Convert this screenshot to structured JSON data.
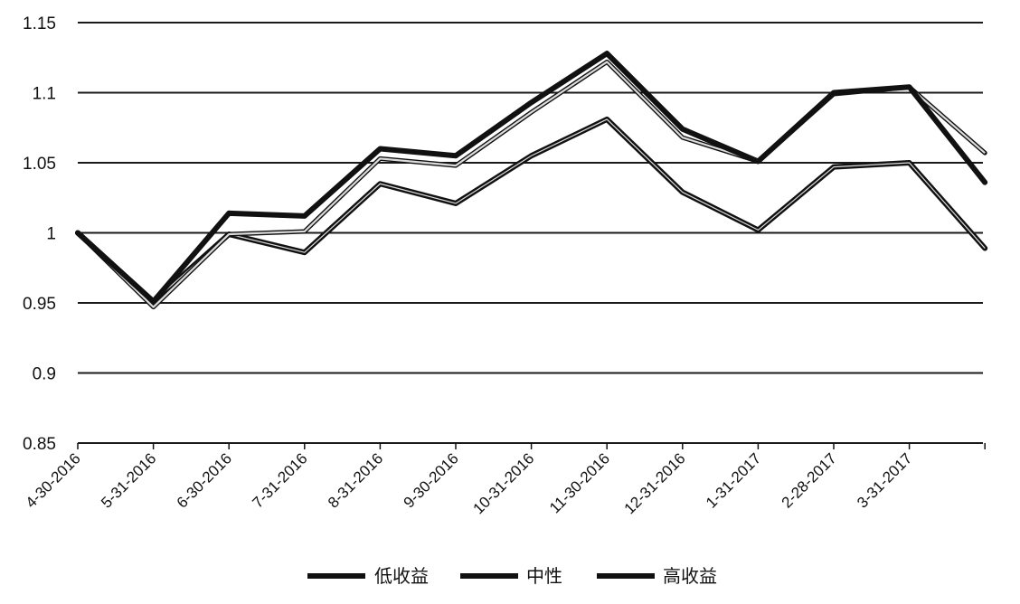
{
  "chart_data": {
    "type": "line",
    "title": "",
    "xlabel": "",
    "ylabel": "",
    "categories": [
      "4-30-2016",
      "5-31-2016",
      "6-30-2016",
      "7-31-2016",
      "8-31-2016",
      "9-30-2016",
      "10-31-2016",
      "11-30-2016",
      "12-31-2016",
      "1-31-2017",
      "2-28-2017",
      "3-31-2017",
      ""
    ],
    "y_tick_labels": [
      "0.85",
      "0.9",
      "0.95",
      "1",
      "1.05",
      "1.1",
      "1.15"
    ],
    "ylim": [
      0.85,
      1.15
    ],
    "grid": true,
    "legend_position": "bottom",
    "series": [
      {
        "name": "低收益",
        "values": [
          1.0,
          0.951,
          0.999,
          0.986,
          1.035,
          1.021,
          1.055,
          1.081,
          1.029,
          1.002,
          1.047,
          1.05,
          0.989
        ]
      },
      {
        "name": "中性",
        "values": [
          1.0,
          0.947,
          0.999,
          1.001,
          1.053,
          1.048,
          1.086,
          1.122,
          1.068,
          1.051,
          1.099,
          1.104,
          1.057
        ]
      },
      {
        "name": "高收益",
        "values": [
          1.0,
          0.951,
          1.014,
          1.012,
          1.06,
          1.055,
          1.093,
          1.128,
          1.074,
          1.051,
          1.1,
          1.104,
          1.036
        ]
      }
    ],
    "colors": {
      "line": "#111111",
      "grid": "#1a1a1a",
      "inner": "#ffffff"
    }
  }
}
